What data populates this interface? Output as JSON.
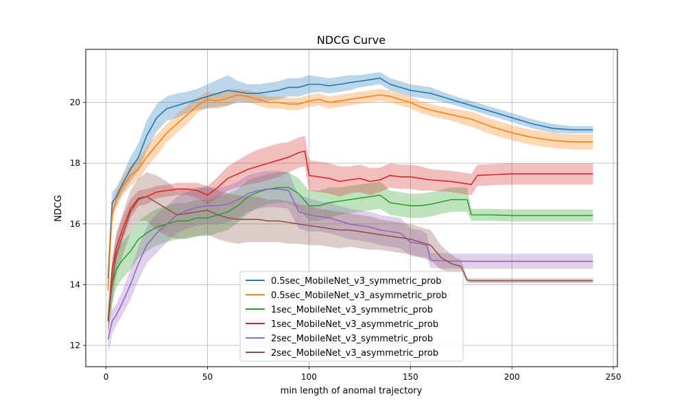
{
  "chart_data": {
    "type": "line",
    "title": "NDCG Curve",
    "xlabel": "min length of anomal trajectory",
    "ylabel": "NDCG",
    "xlim": [
      -10,
      252
    ],
    "ylim": [
      11.3,
      21.75
    ],
    "xticks": [
      0,
      50,
      100,
      150,
      200,
      250
    ],
    "yticks": [
      12,
      14,
      16,
      18,
      20
    ],
    "grid": true,
    "legend_position": "lower-center",
    "series": [
      {
        "name": "0.5sec_MobileNet_v3_symmetric_prob",
        "color": "#1f77b4",
        "x": [
          1,
          2,
          3,
          5,
          8,
          12,
          16,
          20,
          25,
          30,
          35,
          40,
          45,
          50,
          55,
          60,
          65,
          70,
          75,
          80,
          85,
          90,
          95,
          100,
          105,
          110,
          115,
          120,
          125,
          130,
          135,
          140,
          145,
          150,
          155,
          160,
          170,
          180,
          190,
          200,
          210,
          220,
          230,
          240
        ],
        "y": [
          14.2,
          15.5,
          16.7,
          16.9,
          17.3,
          17.8,
          18.2,
          18.9,
          19.5,
          19.8,
          19.9,
          20.0,
          20.1,
          20.2,
          20.3,
          20.4,
          20.35,
          20.3,
          20.3,
          20.35,
          20.4,
          20.5,
          20.5,
          20.6,
          20.6,
          20.55,
          20.6,
          20.65,
          20.7,
          20.75,
          20.8,
          20.6,
          20.5,
          20.4,
          20.35,
          20.3,
          20.1,
          19.9,
          19.7,
          19.5,
          19.3,
          19.15,
          19.1,
          19.1
        ],
        "band": [
          0.25,
          0.35,
          0.35,
          0.3,
          0.3,
          0.4,
          0.45,
          0.5,
          0.45,
          0.4,
          0.4,
          0.35,
          0.35,
          0.4,
          0.45,
          0.5,
          0.35,
          0.3,
          0.3,
          0.3,
          0.3,
          0.3,
          0.3,
          0.3,
          0.25,
          0.25,
          0.25,
          0.25,
          0.2,
          0.2,
          0.2,
          0.2,
          0.2,
          0.2,
          0.2,
          0.2,
          0.15,
          0.15,
          0.15,
          0.15,
          0.15,
          0.15,
          0.12,
          0.12
        ]
      },
      {
        "name": "0.5sec_MobileNet_v3_asymmetric_prob",
        "color": "#ff7f0e",
        "x": [
          1,
          2,
          3,
          5,
          8,
          12,
          16,
          20,
          25,
          30,
          35,
          40,
          45,
          50,
          55,
          60,
          65,
          70,
          75,
          80,
          85,
          90,
          95,
          100,
          105,
          110,
          115,
          120,
          125,
          130,
          135,
          140,
          145,
          150,
          155,
          160,
          170,
          180,
          190,
          200,
          210,
          220,
          230,
          240
        ],
        "y": [
          13.8,
          15.2,
          16.3,
          16.8,
          17.2,
          17.6,
          17.8,
          18.2,
          18.6,
          19.0,
          19.3,
          19.6,
          19.9,
          20.1,
          20.05,
          20.15,
          20.25,
          20.2,
          20.1,
          20.0,
          20.0,
          19.95,
          19.95,
          20.05,
          20.1,
          20.0,
          20.05,
          20.1,
          20.15,
          20.2,
          20.25,
          20.2,
          20.1,
          20.0,
          19.85,
          19.75,
          19.6,
          19.45,
          19.2,
          19.0,
          18.85,
          18.75,
          18.7,
          18.7
        ],
        "band": [
          0.3,
          0.35,
          0.3,
          0.3,
          0.3,
          0.35,
          0.35,
          0.35,
          0.35,
          0.3,
          0.3,
          0.3,
          0.25,
          0.25,
          0.25,
          0.25,
          0.2,
          0.2,
          0.2,
          0.2,
          0.2,
          0.2,
          0.2,
          0.2,
          0.2,
          0.2,
          0.2,
          0.2,
          0.2,
          0.2,
          0.2,
          0.2,
          0.2,
          0.2,
          0.2,
          0.2,
          0.2,
          0.25,
          0.25,
          0.25,
          0.25,
          0.25,
          0.25,
          0.25
        ]
      },
      {
        "name": "1sec_MobileNet_v3_symmetric_prob",
        "color": "#2ca02c",
        "x": [
          1,
          2,
          3,
          5,
          8,
          12,
          16,
          20,
          25,
          30,
          35,
          40,
          45,
          50,
          55,
          60,
          65,
          70,
          75,
          80,
          85,
          90,
          95,
          100,
          105,
          110,
          115,
          120,
          125,
          130,
          135,
          140,
          145,
          150,
          155,
          160,
          170,
          178,
          180,
          190,
          200,
          210,
          220,
          230,
          240
        ],
        "y": [
          12.8,
          13.4,
          14.0,
          14.5,
          14.8,
          15.1,
          15.5,
          15.7,
          15.9,
          16.0,
          16.1,
          16.1,
          16.2,
          16.2,
          16.3,
          16.4,
          16.6,
          16.9,
          17.05,
          17.15,
          17.2,
          17.2,
          17.0,
          16.6,
          16.6,
          16.7,
          16.75,
          16.8,
          16.85,
          16.9,
          16.95,
          16.7,
          16.65,
          16.6,
          16.6,
          16.65,
          16.8,
          16.8,
          16.3,
          16.3,
          16.28,
          16.28,
          16.28,
          16.28,
          16.28
        ],
        "band": [
          0.3,
          0.5,
          0.6,
          0.6,
          0.6,
          0.6,
          0.6,
          0.6,
          0.6,
          0.6,
          0.6,
          0.6,
          0.6,
          0.6,
          0.6,
          0.6,
          0.55,
          0.55,
          0.5,
          0.5,
          0.5,
          0.5,
          0.5,
          0.5,
          0.5,
          0.5,
          0.45,
          0.45,
          0.45,
          0.45,
          0.45,
          0.4,
          0.4,
          0.4,
          0.4,
          0.4,
          0.4,
          0.4,
          0.2,
          0.2,
          0.2,
          0.2,
          0.2,
          0.2,
          0.2
        ]
      },
      {
        "name": "1sec_MobileNet_v3_asymmetric_prob",
        "color": "#d62728",
        "x": [
          1,
          2,
          3,
          5,
          8,
          12,
          16,
          20,
          25,
          30,
          35,
          40,
          45,
          50,
          55,
          60,
          65,
          70,
          75,
          80,
          85,
          90,
          95,
          98,
          100,
          105,
          110,
          115,
          120,
          125,
          130,
          135,
          140,
          145,
          150,
          155,
          160,
          170,
          175,
          180,
          183,
          190,
          200,
          210,
          220,
          230,
          240
        ],
        "y": [
          12.8,
          13.5,
          14.5,
          15.2,
          15.8,
          16.5,
          16.85,
          16.9,
          17.05,
          17.1,
          17.15,
          17.15,
          17.1,
          16.95,
          17.2,
          17.5,
          17.65,
          17.8,
          17.9,
          18.0,
          18.1,
          18.2,
          18.35,
          18.4,
          17.6,
          17.55,
          17.5,
          17.4,
          17.45,
          17.5,
          17.4,
          17.45,
          17.6,
          17.55,
          17.55,
          17.5,
          17.45,
          17.4,
          17.35,
          17.3,
          17.6,
          17.62,
          17.65,
          17.65,
          17.65,
          17.65,
          17.65
        ],
        "band": [
          0.4,
          0.4,
          0.4,
          0.4,
          0.4,
          0.3,
          0.25,
          0.25,
          0.2,
          0.2,
          0.2,
          0.2,
          0.25,
          0.3,
          0.35,
          0.4,
          0.45,
          0.5,
          0.55,
          0.55,
          0.55,
          0.5,
          0.5,
          0.5,
          0.5,
          0.5,
          0.5,
          0.5,
          0.45,
          0.45,
          0.45,
          0.4,
          0.4,
          0.4,
          0.4,
          0.4,
          0.35,
          0.35,
          0.35,
          0.35,
          0.35,
          0.35,
          0.35,
          0.35,
          0.35,
          0.35,
          0.35
        ]
      },
      {
        "name": "2sec_MobileNet_v3_symmetric_prob",
        "color": "#9467bd",
        "x": [
          1,
          2,
          3,
          5,
          8,
          12,
          16,
          20,
          25,
          30,
          35,
          40,
          45,
          50,
          55,
          60,
          65,
          70,
          75,
          80,
          85,
          90,
          95,
          100,
          105,
          110,
          115,
          120,
          125,
          130,
          135,
          140,
          145,
          150,
          155,
          158,
          160,
          170,
          180,
          190,
          200,
          210,
          220,
          230,
          240
        ],
        "y": [
          12.2,
          12.5,
          12.8,
          13.0,
          13.4,
          14.0,
          14.7,
          15.3,
          15.7,
          16.0,
          16.3,
          16.45,
          16.55,
          16.6,
          16.6,
          16.65,
          16.8,
          17.0,
          17.1,
          17.15,
          17.15,
          17.1,
          16.4,
          16.3,
          16.25,
          16.2,
          16.1,
          16.0,
          15.95,
          15.9,
          15.8,
          15.75,
          15.7,
          15.4,
          15.35,
          15.3,
          14.8,
          14.78,
          14.77,
          14.77,
          14.77,
          14.77,
          14.77,
          14.77,
          14.77
        ],
        "band": [
          0.4,
          0.5,
          0.4,
          0.35,
          0.4,
          0.5,
          0.55,
          0.6,
          0.65,
          0.6,
          0.6,
          0.6,
          0.6,
          0.6,
          0.6,
          0.6,
          0.6,
          0.6,
          0.6,
          0.6,
          0.6,
          0.6,
          0.55,
          0.55,
          0.5,
          0.5,
          0.5,
          0.5,
          0.5,
          0.5,
          0.5,
          0.5,
          0.5,
          0.45,
          0.45,
          0.4,
          0.25,
          0.25,
          0.25,
          0.25,
          0.25,
          0.25,
          0.25,
          0.25,
          0.25
        ]
      },
      {
        "name": "2sec_MobileNet_v3_asymmetric_prob",
        "color": "#8c564b",
        "x": [
          1,
          2,
          3,
          5,
          8,
          12,
          16,
          20,
          25,
          30,
          35,
          40,
          45,
          50,
          55,
          60,
          65,
          70,
          75,
          80,
          85,
          90,
          95,
          100,
          105,
          110,
          115,
          120,
          125,
          130,
          135,
          140,
          145,
          150,
          155,
          160,
          165,
          170,
          175,
          178,
          180,
          190,
          200,
          210,
          220,
          230,
          240
        ],
        "y": [
          12.9,
          13.5,
          14.0,
          15.0,
          15.6,
          16.4,
          16.8,
          16.9,
          16.7,
          16.5,
          16.3,
          16.35,
          16.4,
          16.45,
          16.3,
          16.2,
          16.15,
          16.15,
          16.15,
          16.1,
          16.1,
          16.05,
          16.0,
          15.95,
          15.9,
          15.85,
          15.8,
          15.8,
          15.75,
          15.7,
          15.65,
          15.6,
          15.55,
          15.5,
          15.4,
          15.3,
          14.9,
          14.7,
          14.6,
          14.15,
          14.13,
          14.13,
          14.13,
          14.13,
          14.13,
          14.13,
          14.13
        ],
        "band": [
          0.5,
          0.6,
          0.7,
          0.7,
          0.7,
          0.7,
          0.7,
          0.8,
          0.9,
          0.9,
          0.8,
          0.8,
          0.8,
          0.8,
          0.8,
          0.8,
          0.8,
          0.75,
          0.75,
          0.7,
          0.7,
          0.7,
          0.65,
          0.65,
          0.6,
          0.6,
          0.6,
          0.55,
          0.55,
          0.55,
          0.5,
          0.5,
          0.5,
          0.5,
          0.5,
          0.5,
          0.4,
          0.3,
          0.2,
          0.08,
          0.08,
          0.08,
          0.08,
          0.08,
          0.08,
          0.08,
          0.08
        ]
      }
    ]
  }
}
